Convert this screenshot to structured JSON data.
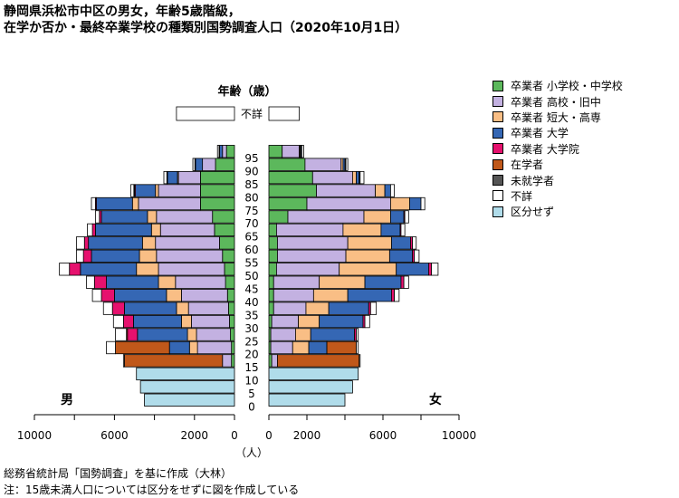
{
  "title_line1": "静岡県浜松市中区の男女，年齢5歳階級，",
  "title_line2": "在学か否か・最終卒業学校の種類別国勢調査人口（2020年10月1日）",
  "footnote1": "総務省統計局「国勢調査」を基に作成（大林）",
  "footnote2": "注：15歳未満人口については区分をせずに図を作成している",
  "colors": {
    "小学校・中学校": "#5cb85c",
    "高校・旧中": "#c3b1e1",
    "短大・高専": "#f9be85",
    "大学": "#3567b4",
    "大学院": "#e6116e",
    "在学者": "#c0581a",
    "未就学者": "#555555",
    "不詳": "#ffffff",
    "区分せず": "#b0dcea"
  },
  "chart_data": {
    "type": "bar",
    "subtype": "population-pyramid",
    "age_axis_label": "年齢（歳）",
    "x_unit_label": "（人）",
    "left_group_label": "男",
    "right_group_label": "女",
    "x_ticks_male": [
      "10000",
      "6000",
      "2000",
      "0"
    ],
    "x_ticks_female": [
      "0",
      "2000",
      "6000",
      "10000"
    ],
    "xlim": [
      0,
      11000
    ],
    "age_ticks": [
      "0",
      "5",
      "10",
      "15",
      "20",
      "25",
      "30",
      "35",
      "40",
      "45",
      "50",
      "55",
      "60",
      "65",
      "70",
      "75",
      "80",
      "85",
      "90",
      "95"
    ],
    "unknown_row_label": "不詳",
    "legend": [
      "卒業者 小学校・中学校",
      "卒業者 高校・旧中",
      "卒業者 短大・高専",
      "卒業者 大学",
      "卒業者 大学院",
      "在学者",
      "未就学者",
      "不詳",
      "区分せず"
    ],
    "series_keys": [
      "小学校・中学校",
      "高校・旧中",
      "短大・高専",
      "大学",
      "大学院",
      "在学者",
      "未就学者",
      "不詳",
      "区分せず"
    ],
    "male": {
      "unknown_row_total": 2900,
      "rows": [
        {
          "age": "0-4",
          "区分せず": 4500
        },
        {
          "age": "5-9",
          "区分せず": 4700
        },
        {
          "age": "10-14",
          "区分せず": 4900
        },
        {
          "age": "15-19",
          "小学校・中学校": 150,
          "高校・旧中": 450,
          "在学者": 4900,
          "不詳": 50
        },
        {
          "age": "20-24",
          "小学校・中学校": 150,
          "高校・旧中": 1700,
          "短大・高専": 400,
          "大学": 1000,
          "在学者": 2700,
          "不詳": 450
        },
        {
          "age": "25-29",
          "小学校・中学校": 200,
          "高校・旧中": 1700,
          "短大・高専": 450,
          "大学": 2500,
          "大学院": 500,
          "在学者": 50,
          "不詳": 550
        },
        {
          "age": "30-34",
          "小学校・中学校": 250,
          "高校・旧中": 1900,
          "短大・高専": 500,
          "大学": 2400,
          "大学院": 500,
          "不詳": 500
        },
        {
          "age": "35-39",
          "小学校・中学校": 300,
          "高校・旧中": 2000,
          "短大・高専": 600,
          "大学": 2600,
          "大学院": 600,
          "不詳": 450
        },
        {
          "age": "40-44",
          "小学校・中学校": 350,
          "高校・旧中": 2300,
          "短大・高専": 750,
          "大学": 2600,
          "大学院": 650,
          "不詳": 450
        },
        {
          "age": "45-49",
          "小学校・中学校": 450,
          "高校・旧中": 2500,
          "短大・高専": 850,
          "大学": 2600,
          "大学院": 600,
          "不詳": 400
        },
        {
          "age": "50-54",
          "小学校・中学校": 500,
          "高校・旧中": 3300,
          "短大・高専": 1100,
          "大学": 2800,
          "大学院": 550,
          "不詳": 500
        },
        {
          "age": "55-59",
          "小学校・中学校": 600,
          "高校・旧中": 3300,
          "短大・高専": 850,
          "大学": 2400,
          "大学院": 400,
          "不詳": 350
        },
        {
          "age": "60-64",
          "小学校・中学校": 750,
          "高校・旧中": 3200,
          "短大・高専": 650,
          "大学": 2700,
          "大学院": 200,
          "不詳": 400
        },
        {
          "age": "65-69",
          "小学校・中学校": 1000,
          "高校・旧中": 2700,
          "短大・高専": 450,
          "大学": 2800,
          "大学院": 150,
          "不詳": 250
        },
        {
          "age": "70-74",
          "小学校・中学校": 1100,
          "高校・旧中": 2800,
          "短大・高専": 450,
          "大学": 2300,
          "大学院": 100,
          "不詳": 200
        },
        {
          "age": "75-79",
          "小学校・中学校": 1700,
          "高校・旧中": 3100,
          "短大・高専": 300,
          "大学": 1800,
          "大学院": 50,
          "不詳": 200
        },
        {
          "age": "80-84",
          "小学校・中学校": 1700,
          "高校・旧中": 2100,
          "短大・高専": 150,
          "大学": 1000,
          "大学院": 50,
          "未就学者": 30,
          "不詳": 150
        },
        {
          "age": "85-89",
          "小学校・中学校": 1700,
          "高校・旧中": 1100,
          "短大・高専": 50,
          "大学": 500,
          "未就学者": 30,
          "不詳": 150
        },
        {
          "age": "90-94",
          "小学校・中学校": 950,
          "高校・旧中": 650,
          "大学": 350,
          "未就学者": 30,
          "不詳": 100
        },
        {
          "age": "95-",
          "小学校・中学校": 400,
          "高校・旧中": 200,
          "大学": 150,
          "未就学者": 20,
          "不詳": 80
        }
      ]
    },
    "female": {
      "unknown_row_total": 1600,
      "rows": [
        {
          "age": "0-4",
          "区分せず": 4000
        },
        {
          "age": "5-9",
          "区分せず": 4400
        },
        {
          "age": "10-14",
          "区分せず": 4700
        },
        {
          "age": "15-19",
          "小学校・中学校": 150,
          "高校・旧中": 300,
          "在学者": 4300,
          "不詳": 50
        },
        {
          "age": "20-24",
          "小学校・中学校": 100,
          "高校・旧中": 1150,
          "短大・高専": 850,
          "大学": 950,
          "在学者": 1550,
          "不詳": 100
        },
        {
          "age": "25-29",
          "小学校・中学校": 100,
          "高校・旧中": 1300,
          "短大・高専": 800,
          "大学": 2300,
          "大学院": 100,
          "不詳": 100
        },
        {
          "age": "30-34",
          "小学校・中学校": 150,
          "高校・旧中": 1400,
          "短大・高専": 1100,
          "大学": 2300,
          "大学院": 100,
          "不詳": 250
        },
        {
          "age": "35-39",
          "小学校・中学校": 250,
          "高校・旧中": 1700,
          "短大・高専": 1200,
          "大学": 2100,
          "大学院": 100,
          "不詳": 300
        },
        {
          "age": "40-44",
          "小学校・中学校": 250,
          "高校・旧中": 2100,
          "短大・高専": 1800,
          "大学": 2300,
          "大学院": 150,
          "不詳": 250
        },
        {
          "age": "45-49",
          "小学校・中学校": 250,
          "高校・旧中": 2400,
          "短大・高専": 2400,
          "大学": 1900,
          "大学院": 150,
          "不詳": 250
        },
        {
          "age": "50-54",
          "小学校・中学校": 400,
          "高校・旧中": 3300,
          "短大・高専": 3000,
          "大学": 1700,
          "大学院": 150,
          "不詳": 350
        },
        {
          "age": "55-59",
          "小学校・中学校": 450,
          "高校・旧中": 3600,
          "短大・高専": 2300,
          "大学": 1200,
          "大学院": 100,
          "不詳": 250
        },
        {
          "age": "60-64",
          "小学校・中学校": 450,
          "高校・旧中": 3700,
          "短大・高専": 2300,
          "大学": 1000,
          "大学院": 100,
          "不詳": 200
        },
        {
          "age": "65-69",
          "小学校・中学校": 400,
          "高校・旧中": 3500,
          "短大・高専": 2000,
          "大学": 1000,
          "大学院": 50,
          "不詳": 200
        },
        {
          "age": "70-74",
          "小学校・中学校": 1000,
          "高校・旧中": 4000,
          "短大・高専": 1400,
          "大学": 700,
          "大学院": 50,
          "不詳": 200
        },
        {
          "age": "75-79",
          "小学校・中学校": 2000,
          "高校・旧中": 4400,
          "短大・高専": 1000,
          "大学": 600,
          "不詳": 200
        },
        {
          "age": "80-84",
          "小学校・中学校": 2500,
          "高校・旧中": 3100,
          "短大・高専": 500,
          "大学": 300,
          "不詳": 200
        },
        {
          "age": "85-89",
          "小学校・中学校": 2300,
          "高校・旧中": 2100,
          "短大・高専": 200,
          "大学": 150,
          "未就学者": 50,
          "不詳": 200
        },
        {
          "age": "90-94",
          "小学校・中学校": 1900,
          "高校・旧中": 1900,
          "短大・高専": 100,
          "大学": 100,
          "未就学者": 50,
          "不詳": 100
        },
        {
          "age": "95-",
          "小学校・中学校": 700,
          "高校・旧中": 900,
          "短大・高専": 50,
          "大学": 50,
          "未就学者": 30,
          "不詳": 100
        }
      ]
    }
  }
}
